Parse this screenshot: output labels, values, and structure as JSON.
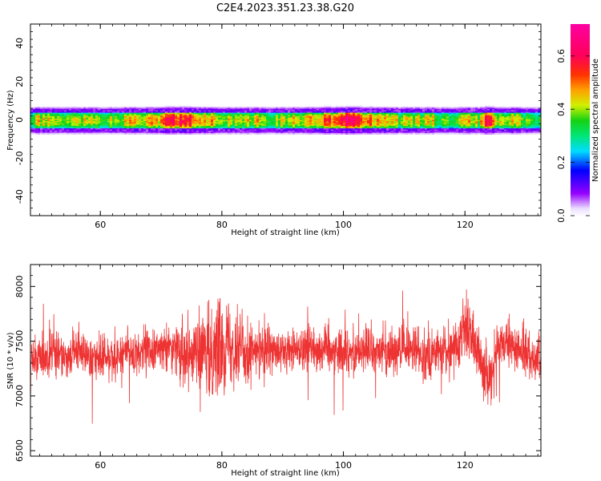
{
  "title": "C2E4.2023.351.23.38.G20",
  "chart_data": [
    {
      "type": "heatmap",
      "xlabel": "Height of straight line (km)",
      "ylabel": "Frequency (Hz)",
      "xlim": [
        48.5,
        132.5
      ],
      "ylim": [
        -50,
        50
      ],
      "xticks": [
        60,
        80,
        100,
        120
      ],
      "yticks": [
        -40,
        -20,
        0,
        20,
        40
      ],
      "colorbar": {
        "label": "Normalized spectral amplitude",
        "range": [
          0.0,
          0.72
        ],
        "ticks": [
          0.0,
          0.2,
          0.4,
          0.6
        ]
      },
      "band": {
        "center_hz": 0,
        "halfwidth_hz": 4,
        "peak_regions": [
          {
            "x_range": [
              65,
              82
            ],
            "amplitude": 0.6
          },
          {
            "x_range": [
              93,
              108
            ],
            "amplitude": 0.62
          },
          {
            "x_range": [
              122,
              125
            ],
            "amplitude": 0.62
          }
        ]
      }
    },
    {
      "type": "line",
      "xlabel": "Height of straight line (km)",
      "ylabel": "SNR (10 * v/v)",
      "xlim": [
        48.5,
        132.5
      ],
      "ylim": [
        6450,
        8200
      ],
      "xticks": [
        60,
        80,
        100,
        120
      ],
      "yticks": [
        6500,
        7000,
        7500,
        8000
      ],
      "series": [
        {
          "color": "#ee3333",
          "x": [
            49,
            50,
            52,
            54,
            56,
            58,
            60,
            62,
            64,
            66,
            68,
            70,
            72,
            74,
            76,
            77,
            78,
            79,
            80,
            81,
            82,
            84,
            86,
            88,
            90,
            92,
            94,
            96,
            98,
            100,
            102,
            104,
            106,
            108,
            110,
            112,
            114,
            116,
            118,
            119,
            120,
            121,
            122,
            123,
            124,
            125,
            126,
            128,
            130,
            132
          ],
          "y": [
            7300,
            7350,
            7350,
            7380,
            7400,
            7380,
            7350,
            7360,
            7380,
            7400,
            7420,
            7420,
            7450,
            7430,
            7400,
            7350,
            7380,
            7420,
            7500,
            7520,
            7450,
            7420,
            7400,
            7380,
            7400,
            7420,
            7450,
            7440,
            7420,
            7400,
            7420,
            7420,
            7400,
            7400,
            7420,
            7400,
            7380,
            7400,
            7420,
            7500,
            7650,
            7550,
            7400,
            7300,
            7100,
            7350,
            7450,
            7450,
            7400,
            7350
          ]
        }
      ]
    }
  ]
}
